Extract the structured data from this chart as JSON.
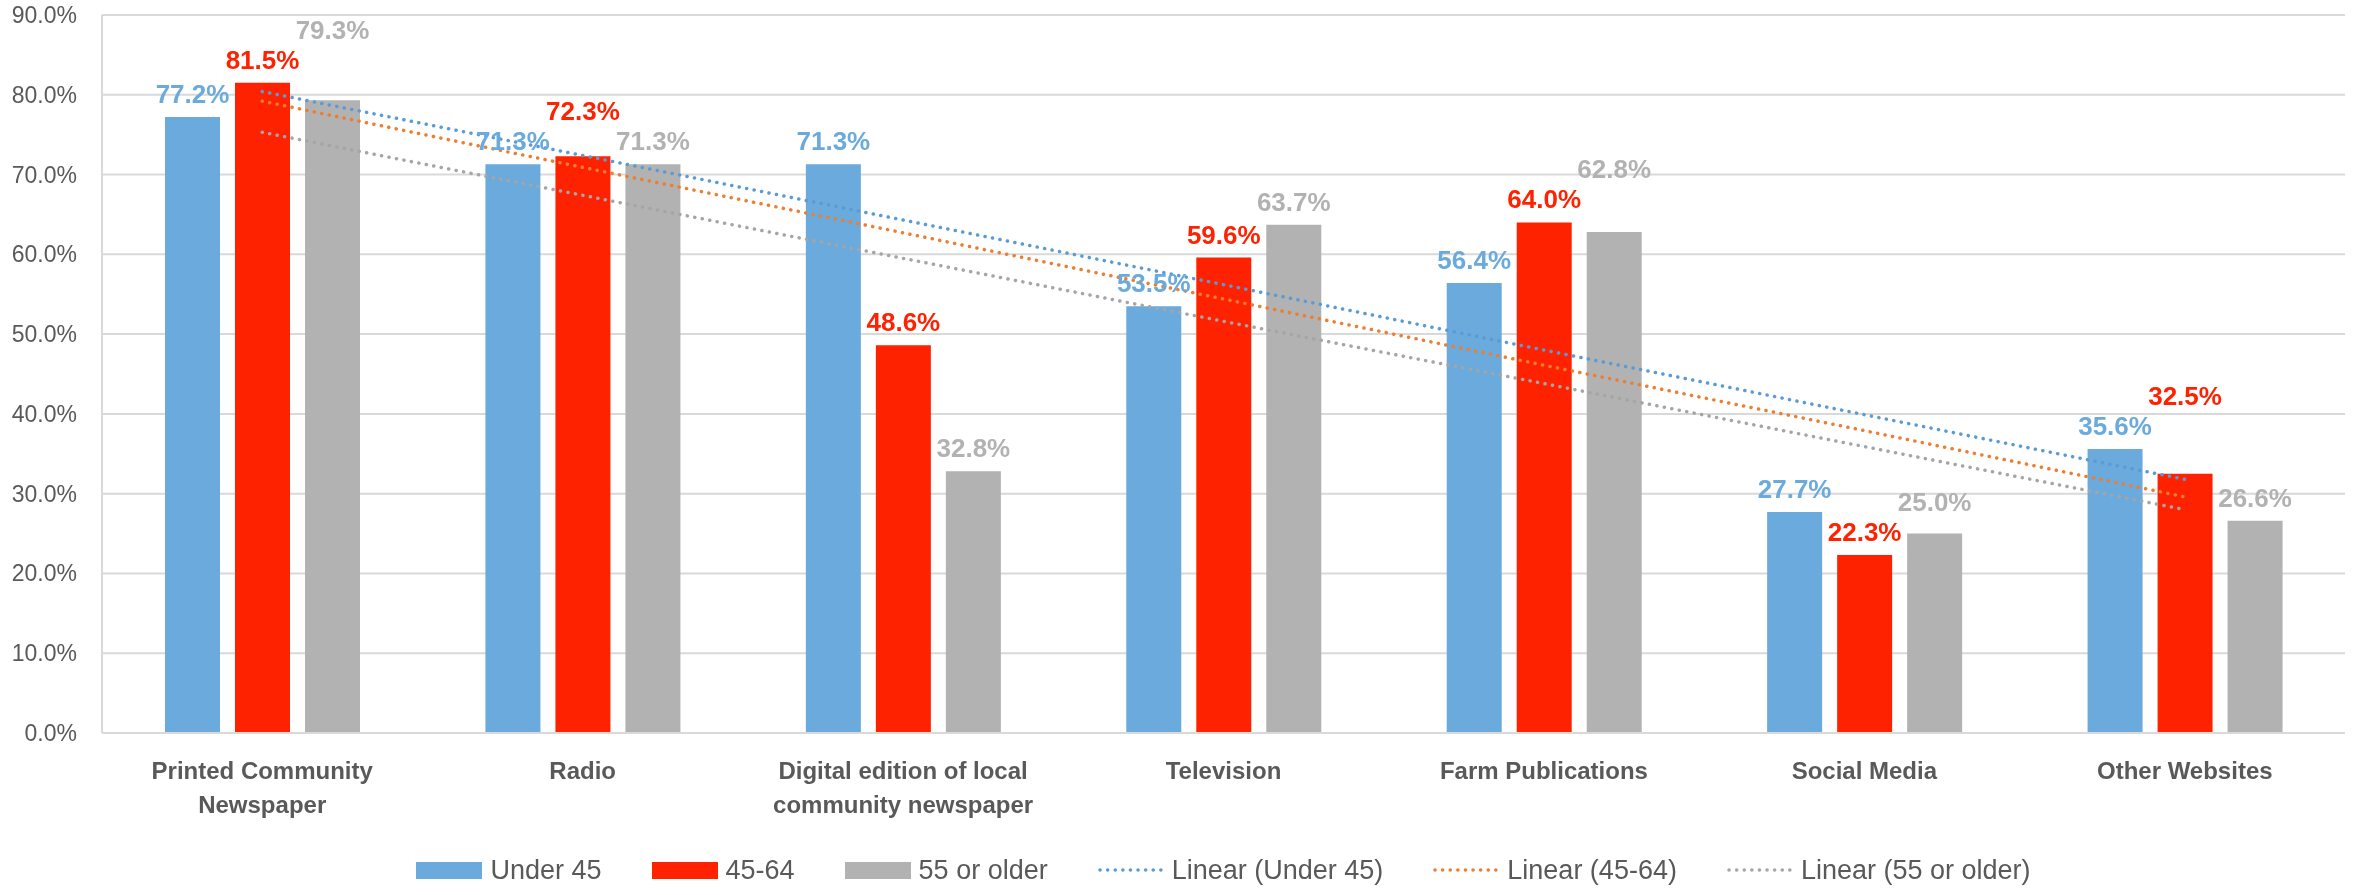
{
  "chart_data": {
    "type": "bar",
    "categories": [
      "Printed Community Newspaper",
      "Radio",
      "Digital edition of local community newspaper",
      "Television",
      "Farm Publications",
      "Social Media",
      "Other Websites"
    ],
    "series": [
      {
        "name": "Under 45",
        "color": "#6aaadc",
        "values": [
          77.2,
          71.3,
          71.3,
          53.5,
          56.4,
          27.7,
          35.6
        ],
        "value_labels": [
          "77.2%",
          "71.3%",
          "71.3%",
          "53.5%",
          "56.4%",
          "27.7%",
          "35.6%"
        ]
      },
      {
        "name": "45-64",
        "color": "#ff2200",
        "values": [
          81.5,
          72.3,
          48.6,
          59.6,
          64.0,
          22.3,
          32.5
        ],
        "value_labels": [
          "81.5%",
          "72.3%",
          "48.6%",
          "59.6%",
          "64.0%",
          "22.3%",
          "32.5%"
        ]
      },
      {
        "name": "55 or older",
        "color": "#b2b2b2",
        "values": [
          79.3,
          71.3,
          32.8,
          63.7,
          62.8,
          25.0,
          26.6
        ],
        "value_labels": [
          "79.3%",
          "71.3%",
          "32.8%",
          "63.7%",
          "62.8%",
          "25.0%",
          "26.6%"
        ]
      },
      {
        "name": "Linear (Under 45)",
        "type": "line",
        "color": "#5b9bd5",
        "line_style": "dotted",
        "values": [
          80.4,
          72.4,
          64.3,
          56.2,
          48.0,
          39.9,
          31.8
        ]
      },
      {
        "name": "Linear (45-64)",
        "type": "line",
        "color": "#ed7d31",
        "line_style": "dotted",
        "values": [
          79.2,
          70.9,
          62.7,
          54.4,
          46.1,
          37.9,
          29.6
        ]
      },
      {
        "name": "Linear (55 or older)",
        "type": "line",
        "color": "#a5a5a5",
        "line_style": "dotted",
        "values": [
          75.3,
          67.4,
          59.5,
          51.6,
          43.8,
          35.9,
          28.0
        ]
      }
    ],
    "ylim": [
      0,
      90
    ],
    "yticks": [
      {
        "value": 0,
        "label": "0.0%"
      },
      {
        "value": 10,
        "label": "10.0%"
      },
      {
        "value": 20,
        "label": "20.0%"
      },
      {
        "value": 30,
        "label": "30.0%"
      },
      {
        "value": 40,
        "label": "40.0%"
      },
      {
        "value": 50,
        "label": "50.0%"
      },
      {
        "value": 60,
        "label": "60.0%"
      },
      {
        "value": 70,
        "label": "70.0%"
      },
      {
        "value": 80,
        "label": "80.0%"
      },
      {
        "value": 90,
        "label": "90.0%"
      }
    ],
    "grid": "y",
    "legend": "bottom"
  }
}
